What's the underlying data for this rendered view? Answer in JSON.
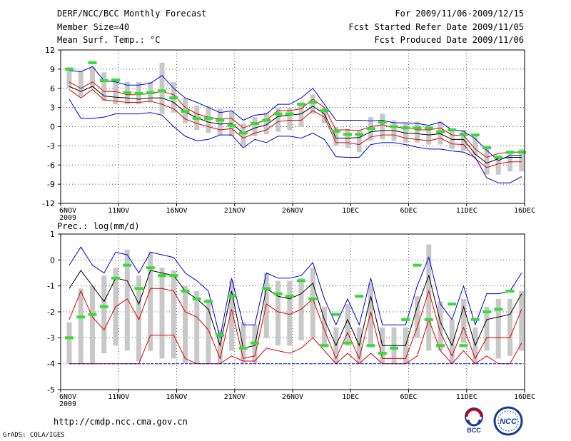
{
  "header": {
    "title": "DERF/NCC/BCC Monthly Forecast",
    "member_size": "Member Size=40",
    "variable": "Mean Surf. Temp.: °C",
    "period": "For 2009/11/06-2009/12/15",
    "start_ref": "Fcst Started Refer Date 2009/11/05",
    "produced": "Fcst Produced Date 2009/11/06"
  },
  "footer": {
    "url": "http://cmdp.ncc.cma.gov.cn",
    "grads": "GrADS: COLA/IGES",
    "logo_bcc": "BCC",
    "logo_ncc": "NCC"
  },
  "colors": {
    "grid": "#555555",
    "box": "#c8c8c8",
    "obs": "#33dd33",
    "ens_mean": "#000000",
    "spread": "#dd0000",
    "envelope": "#0000dd"
  },
  "chart_data": [
    {
      "type": "line",
      "name": "temperature",
      "title": "",
      "xlabel": "",
      "ylabel": "°C",
      "ylim": [
        -12,
        12
      ],
      "yticks": [
        12,
        9,
        6,
        3,
        0,
        -3,
        -6,
        -9,
        -12
      ],
      "xlim": [
        0,
        40
      ],
      "xticks": [
        {
          "day": 0,
          "label": "6NOV",
          "sub": "2009"
        },
        {
          "day": 5,
          "label": "11NOV",
          "sub": ""
        },
        {
          "day": 10,
          "label": "16NOV",
          "sub": ""
        },
        {
          "day": 15,
          "label": "21NOV",
          "sub": ""
        },
        {
          "day": 20,
          "label": "26NOV",
          "sub": ""
        },
        {
          "day": 25,
          "label": "1DEC",
          "sub": ""
        },
        {
          "day": 30,
          "label": "6DEC",
          "sub": ""
        },
        {
          "day": 35,
          "label": "11DEC",
          "sub": ""
        },
        {
          "day": 40,
          "label": "16DEC",
          "sub": ""
        }
      ],
      "days": [
        0,
        1,
        2,
        3,
        4,
        5,
        6,
        7,
        8,
        9,
        10,
        11,
        12,
        13,
        14,
        15,
        16,
        17,
        18,
        19,
        20,
        21,
        22,
        23,
        24,
        25,
        26,
        27,
        28,
        29,
        30,
        31,
        32,
        33,
        34,
        35,
        36,
        37,
        38,
        39
      ],
      "series": [
        {
          "name": "max",
          "role": "envelope",
          "values": [
            8.8,
            8.6,
            9.4,
            7.2,
            7.0,
            6.5,
            6.5,
            6.8,
            8.0,
            6.0,
            4.5,
            3.8,
            3.0,
            2.2,
            2.5,
            1.0,
            1.8,
            2.0,
            3.5,
            3.5,
            4.5,
            6.0,
            3.5,
            1.0,
            1.0,
            1.0,
            0.9,
            1.0,
            0.6,
            0.6,
            0.5,
            0.2,
            0.7,
            -0.5,
            -0.7,
            -1.9,
            -3.7,
            -5.3,
            -4.5,
            -4.5
          ]
        },
        {
          "name": "upper",
          "role": "spread",
          "values": [
            7.0,
            6.0,
            7.0,
            5.5,
            5.5,
            5.0,
            5.0,
            5.2,
            5.5,
            5.0,
            3.0,
            2.0,
            1.5,
            1.2,
            1.3,
            -0.2,
            0.5,
            1.0,
            2.5,
            2.5,
            2.8,
            4.3,
            3.0,
            -0.5,
            -0.5,
            -0.6,
            0.0,
            0.3,
            -0.2,
            0.0,
            -0.5,
            -0.5,
            -0.2,
            -1.3,
            -1.4,
            -3.5,
            -4.8,
            -4.2,
            -4.0,
            -4.0
          ]
        },
        {
          "name": "mean",
          "role": "mean",
          "values": [
            6.3,
            5.5,
            6.3,
            4.8,
            4.6,
            4.5,
            4.3,
            4.5,
            4.5,
            3.8,
            2.3,
            1.4,
            0.7,
            0.4,
            0.5,
            -1.0,
            -0.2,
            0.3,
            1.6,
            1.8,
            2.0,
            3.2,
            2.0,
            -1.8,
            -1.8,
            -1.7,
            -0.8,
            -0.6,
            -0.6,
            -1.0,
            -1.1,
            -1.3,
            -1.1,
            -2.0,
            -2.0,
            -4.3,
            -5.7,
            -5.0,
            -4.8,
            -4.8
          ]
        },
        {
          "name": "lower",
          "role": "spread",
          "values": [
            5.8,
            4.5,
            5.8,
            4.2,
            4.0,
            3.8,
            3.8,
            4.0,
            3.5,
            2.8,
            1.2,
            0.5,
            0.0,
            -0.5,
            -0.3,
            -1.8,
            -1.0,
            -0.5,
            0.8,
            1.0,
            1.0,
            2.5,
            1.5,
            -2.5,
            -2.5,
            -2.8,
            -1.6,
            -1.3,
            -1.3,
            -1.8,
            -2.0,
            -2.2,
            -1.8,
            -2.7,
            -2.8,
            -5.0,
            -6.4,
            -5.8,
            -5.5,
            -5.5
          ]
        },
        {
          "name": "min",
          "role": "envelope",
          "values": [
            4.3,
            1.3,
            1.3,
            1.5,
            2.0,
            2.0,
            2.0,
            2.2,
            1.8,
            0.0,
            -1.5,
            -2.2,
            -2.0,
            -1.3,
            -1.3,
            -3.3,
            -2.0,
            -2.5,
            -1.5,
            -1.5,
            -1.8,
            -1.0,
            -2.0,
            -4.7,
            -4.8,
            -4.8,
            -2.8,
            -2.5,
            -2.5,
            -2.8,
            -3.2,
            -3.5,
            -3.5,
            -3.8,
            -4.0,
            -4.8,
            -8.0,
            -8.8,
            -8.8,
            -7.8
          ]
        },
        {
          "name": "observed",
          "role": "obs",
          "values": [
            9.0,
            null,
            10.0,
            7.2,
            7.3,
            5.3,
            5.2,
            5.3,
            5.6,
            4.5,
            2.4,
            1.3,
            1.3,
            1.0,
            0.2,
            -1.0,
            0.5,
            1.0,
            2.0,
            2.0,
            3.5,
            3.8,
            2.5,
            -0.7,
            -1.2,
            -1.2,
            -0.3,
            0.7,
            0.0,
            -0.2,
            -0.2,
            -0.2,
            -0.8,
            -0.5,
            -1.2,
            -1.3,
            -3.3,
            -4.8,
            -4.0,
            -4.0
          ]
        },
        {
          "name": "box_top",
          "role": "box",
          "values": [
            9.3,
            8.7,
            9.3,
            8.5,
            7.3,
            7.0,
            7.0,
            7.0,
            10.0,
            7.0,
            4.5,
            3.3,
            3.2,
            2.8,
            2.5,
            0.5,
            1.5,
            2.2,
            3.0,
            3.0,
            3.8,
            5.0,
            3.0,
            0.0,
            -0.3,
            -0.6,
            1.5,
            2.0,
            1.0,
            0.5,
            0.8,
            0.0,
            0.8,
            -0.5,
            -0.5,
            -1.5,
            -3.0,
            -4.5,
            -4.0,
            -3.5
          ]
        },
        {
          "name": "box_bottom",
          "role": "box",
          "values": [
            6.0,
            4.8,
            6.0,
            4.0,
            3.5,
            3.5,
            3.5,
            3.8,
            2.0,
            2.2,
            0.5,
            -0.5,
            -1.0,
            -1.3,
            -1.5,
            -3.0,
            -1.5,
            -1.2,
            -0.8,
            -0.5,
            0.0,
            2.0,
            0.5,
            -3.0,
            -3.3,
            -4.0,
            -2.2,
            -2.0,
            -2.2,
            -2.5,
            -2.5,
            -2.8,
            -2.8,
            -3.5,
            -3.8,
            -4.5,
            -7.5,
            -7.5,
            -7.0,
            -7.0
          ]
        }
      ]
    },
    {
      "type": "line",
      "name": "precipitation",
      "title": "Prec.: log(mm/d)",
      "xlabel": "",
      "ylabel": "log(mm/d)",
      "ylim": [
        -5,
        1
      ],
      "yticks": [
        1,
        0,
        -1,
        -2,
        -3,
        -4,
        -5
      ],
      "xlim": [
        0,
        40
      ],
      "xticks": [
        {
          "day": 0,
          "label": "6NOV",
          "sub": "2009"
        },
        {
          "day": 5,
          "label": "11NOV",
          "sub": ""
        },
        {
          "day": 10,
          "label": "16NOV",
          "sub": ""
        },
        {
          "day": 15,
          "label": "21NOV",
          "sub": ""
        },
        {
          "day": 20,
          "label": "26NOV",
          "sub": ""
        },
        {
          "day": 25,
          "label": "1DEC",
          "sub": ""
        },
        {
          "day": 30,
          "label": "6DEC",
          "sub": ""
        },
        {
          "day": 35,
          "label": "11DEC",
          "sub": ""
        },
        {
          "day": 40,
          "label": "16DEC",
          "sub": ""
        }
      ],
      "days": [
        0,
        1,
        2,
        3,
        4,
        5,
        6,
        7,
        8,
        9,
        10,
        11,
        12,
        13,
        14,
        15,
        16,
        17,
        18,
        19,
        20,
        21,
        22,
        23,
        24,
        25,
        26,
        27,
        28,
        29,
        30,
        31,
        32,
        33,
        34,
        35,
        36,
        37,
        38,
        39
      ],
      "series": [
        {
          "name": "max",
          "role": "envelope",
          "values": [
            -0.2,
            0.5,
            -0.2,
            -0.5,
            0.3,
            0.2,
            -0.5,
            0.3,
            0.2,
            0.1,
            -0.5,
            -0.8,
            -1.2,
            -3.0,
            -0.7,
            -2.5,
            -2.5,
            -0.5,
            -0.7,
            -0.7,
            -0.6,
            -0.1,
            -1.5,
            -2.5,
            -1.5,
            -2.5,
            -0.7,
            -2.5,
            -2.5,
            -2.5,
            -1.0,
            0.1,
            -1.7,
            -2.3,
            -1.0,
            -2.5,
            -1.3,
            -1.3,
            -1.2,
            -0.5
          ]
        },
        {
          "name": "mean",
          "role": "mean",
          "values": [
            -1.1,
            -0.4,
            -1.0,
            -1.6,
            -0.7,
            -0.8,
            -1.7,
            -0.4,
            -0.5,
            -0.6,
            -1.2,
            -1.5,
            -1.9,
            -3.3,
            -1.2,
            -3.4,
            -3.3,
            -1.1,
            -1.4,
            -1.5,
            -1.3,
            -0.9,
            -2.3,
            -3.3,
            -2.3,
            -3.3,
            -1.4,
            -3.3,
            -3.3,
            -3.3,
            -1.8,
            -0.6,
            -2.4,
            -3.3,
            -1.8,
            -3.3,
            -2.3,
            -2.2,
            -2.1,
            -1.3
          ]
        },
        {
          "name": "upper",
          "role": "spread",
          "values": [
            -2.3,
            -1.2,
            -2.2,
            -2.7,
            -1.8,
            -1.5,
            -2.3,
            -1.1,
            -1.1,
            -1.2,
            -2.0,
            -2.2,
            -2.7,
            -3.8,
            -1.9,
            -3.8,
            -3.7,
            -1.7,
            -2.0,
            -2.1,
            -1.9,
            -1.5,
            -2.7,
            -3.8,
            -2.8,
            -3.8,
            -2.0,
            -3.8,
            -3.8,
            -3.8,
            -2.6,
            -1.2,
            -2.8,
            -3.7,
            -2.6,
            -3.8,
            -3.0,
            -3.0,
            -3.0,
            -1.9
          ]
        },
        {
          "name": "lower",
          "role": "spread",
          "values": [
            -4.0,
            -4.0,
            -4.0,
            -4.0,
            -4.0,
            -4.0,
            -4.0,
            -2.9,
            -2.9,
            -2.9,
            -3.8,
            -4.0,
            -4.0,
            -4.0,
            -3.7,
            -3.9,
            -3.9,
            -3.4,
            -3.5,
            -3.6,
            -3.4,
            -3.0,
            -3.5,
            -4.0,
            -3.6,
            -4.0,
            -3.6,
            -4.0,
            -4.0,
            -4.0,
            -3.7,
            -2.3,
            -3.5,
            -4.0,
            -3.5,
            -4.0,
            -3.7,
            -4.0,
            -4.0,
            -3.2
          ]
        },
        {
          "name": "min",
          "role": "envelope",
          "values": [
            -4.0,
            -4.0,
            -4.0,
            -4.0,
            -4.0,
            -4.0,
            -4.0,
            -4.0,
            -4.0,
            -4.0,
            -4.0,
            -4.0,
            -4.0,
            -4.0,
            -4.0,
            -4.0,
            -4.0,
            -4.0,
            -4.0,
            -4.0,
            -4.0,
            -4.0,
            -4.0,
            -4.0,
            -4.0,
            -4.0,
            -4.0,
            -4.0,
            -4.0,
            -4.0,
            -4.0,
            -4.0,
            -4.0,
            -4.0,
            -4.0,
            -4.0,
            -4.0,
            -4.0,
            -4.0,
            -4.0
          ]
        },
        {
          "name": "observed",
          "role": "obs",
          "values": [
            -3.0,
            -2.2,
            -2.1,
            -1.8,
            -0.7,
            -0.2,
            -1.1,
            -0.3,
            -0.6,
            -0.6,
            -1.2,
            -1.5,
            -1.6,
            -2.9,
            -1.4,
            -3.4,
            -3.2,
            -1.1,
            -1.3,
            -1.4,
            -0.8,
            -1.5,
            -3.3,
            -2.1,
            -3.2,
            -1.4,
            -3.3,
            -3.6,
            -3.4,
            -2.3,
            -0.2,
            -2.3,
            -3.3,
            -1.7,
            -3.3,
            -2.3,
            -2.0,
            -1.9,
            -1.2,
            null
          ]
        },
        {
          "name": "box_top",
          "role": "box",
          "values": [
            -2.4,
            -1.1,
            -1.0,
            -0.6,
            -0.3,
            0.4,
            -0.6,
            0.3,
            -0.3,
            -0.4,
            -1.0,
            -1.2,
            -1.5,
            -2.7,
            -0.8,
            -2.4,
            -2.5,
            -0.5,
            -0.8,
            -0.8,
            -0.7,
            -0.3,
            -1.8,
            -2.6,
            -1.7,
            -2.6,
            -0.9,
            -2.6,
            -2.6,
            -2.6,
            -1.4,
            0.6,
            -1.6,
            -2.3,
            -1.5,
            -2.6,
            -1.8,
            -1.5,
            -1.5,
            -1.2
          ]
        },
        {
          "name": "box_bottom",
          "role": "box",
          "values": [
            -4.0,
            -4.0,
            -4.0,
            -3.6,
            -3.3,
            -3.5,
            -3.9,
            -3.5,
            -3.8,
            -3.8,
            -4.0,
            -4.0,
            -4.0,
            -4.0,
            -3.5,
            -4.0,
            -4.0,
            -3.0,
            -3.3,
            -3.3,
            -3.1,
            -3.0,
            -3.3,
            -4.0,
            -3.3,
            -4.0,
            -3.3,
            -4.0,
            -4.0,
            -4.0,
            -3.0,
            -3.5,
            -3.5,
            -4.0,
            -3.2,
            -4.0,
            -3.5,
            -3.8,
            -3.7,
            -3.5
          ]
        }
      ]
    }
  ]
}
